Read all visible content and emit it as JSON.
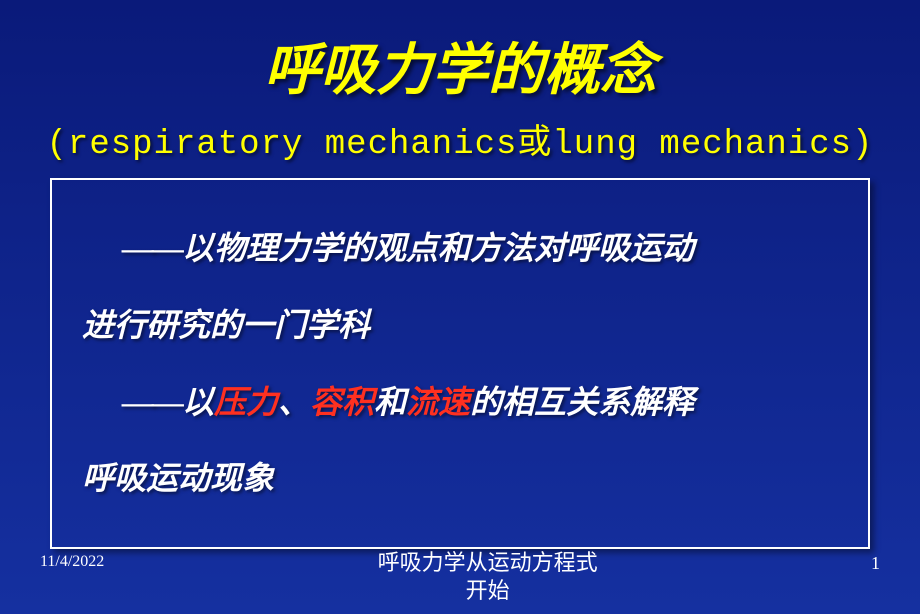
{
  "colors": {
    "bg_top": "#0a1a7a",
    "bg_bottom": "#1530a0",
    "title_color": "#ffff00",
    "body_color": "#ffffff",
    "highlight_color": "#ff3020",
    "border_color": "#ffffff"
  },
  "typography": {
    "title_fontsize": 56,
    "subtitle_fontsize": 34,
    "body_fontsize": 32,
    "footer_fontsize": 18,
    "title_font": "KaiTi",
    "subtitle_font": "Courier New",
    "body_font": "KaiTi",
    "title_italic": true,
    "body_italic": true,
    "body_bold": true
  },
  "title": "呼吸力学的概念",
  "subtitle": "(respiratory mechanics或lung mechanics)",
  "body": {
    "line1_dash": "——",
    "line1a": "以物理力学的观点和方法对呼吸运动",
    "line1b": "进行研究的一门学科",
    "line2_dash": "——",
    "line2_pre": "以",
    "hl1": "压力",
    "line2_sep1": "、",
    "hl2": "容积",
    "line2_mid": "和",
    "hl3": "流速",
    "line2_post": "的相互关系解释",
    "line2b": "呼吸运动现象"
  },
  "footer": {
    "date": "11/4/2022",
    "center_line1": "呼吸力学从运动方程式",
    "center_line2": "开始",
    "page": "1"
  }
}
